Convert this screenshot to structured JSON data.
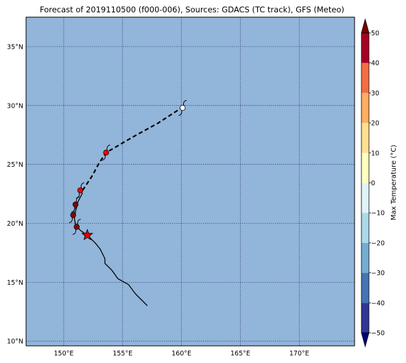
{
  "title": "Forecast of 2019110500 (f000-006), Sources: GDACS (TC track), GFS (Meteo)",
  "map": {
    "ocean_color": "#92b5da",
    "grid_color": "#2b3b70",
    "lon_range": [
      146.8,
      174.7
    ],
    "lat_range": [
      9.6,
      37.5
    ],
    "lon_ticks": [
      {
        "value": 150,
        "label": "150°E"
      },
      {
        "value": 155,
        "label": "155°E"
      },
      {
        "value": 160,
        "label": "160°E"
      },
      {
        "value": 165,
        "label": "165°E"
      },
      {
        "value": 170,
        "label": "170°E"
      }
    ],
    "lat_ticks": [
      {
        "value": 10,
        "label": "10°N"
      },
      {
        "value": 15,
        "label": "15°N"
      },
      {
        "value": 20,
        "label": "20°N"
      },
      {
        "value": 25,
        "label": "25°N"
      },
      {
        "value": 30,
        "label": "30°N"
      },
      {
        "value": 35,
        "label": "35°N"
      }
    ],
    "past_track": [
      [
        157.1,
        13.0
      ],
      [
        156.6,
        13.5
      ],
      [
        156.1,
        14.0
      ],
      [
        155.5,
        14.8
      ],
      [
        154.6,
        15.3
      ],
      [
        154.1,
        16.0
      ],
      [
        153.5,
        16.6
      ],
      [
        153.5,
        17.0
      ],
      [
        153.1,
        17.8
      ],
      [
        152.7,
        18.3
      ],
      [
        152.0,
        19.0
      ],
      [
        151.4,
        19.4
      ],
      [
        151.0,
        19.9
      ],
      [
        150.9,
        20.4
      ],
      [
        151.0,
        21.0
      ],
      [
        151.2,
        21.8
      ],
      [
        151.6,
        22.6
      ]
    ],
    "forecast_track": [
      [
        151.6,
        22.8
      ],
      [
        152.4,
        24.0
      ],
      [
        153.0,
        25.1
      ],
      [
        153.6,
        26.0
      ],
      [
        156.0,
        27.4
      ],
      [
        158.0,
        28.5
      ],
      [
        160.0,
        29.8
      ]
    ],
    "current_position": {
      "lon": 152.0,
      "lat": 19.0,
      "color": "#e00000"
    },
    "storm_symbols": [
      {
        "lon": 151.1,
        "lat": 19.7,
        "color": "#8b0000"
      },
      {
        "lon": 150.8,
        "lat": 20.7,
        "color": "#8b0000"
      },
      {
        "lon": 151.0,
        "lat": 21.6,
        "color": "#8b0000"
      },
      {
        "lon": 151.4,
        "lat": 22.8,
        "color": "#ff0000"
      },
      {
        "lon": 153.6,
        "lat": 26.0,
        "color": "#ff0000"
      },
      {
        "lon": 160.1,
        "lat": 29.8,
        "color": "#ffffff"
      }
    ]
  },
  "colorbar": {
    "label": "Max Temperature (°C)",
    "range": [
      -50,
      50
    ],
    "levels": [
      {
        "from": -50,
        "to": -40,
        "color": "#313695"
      },
      {
        "from": -40,
        "to": -30,
        "color": "#4575b4"
      },
      {
        "from": -30,
        "to": -20,
        "color": "#74add1"
      },
      {
        "from": -20,
        "to": -10,
        "color": "#abd9e9"
      },
      {
        "from": -10,
        "to": 0,
        "color": "#e0f3f8"
      },
      {
        "from": 0,
        "to": 10,
        "color": "#ffffbf"
      },
      {
        "from": 10,
        "to": 20,
        "color": "#fee090"
      },
      {
        "from": 20,
        "to": 30,
        "color": "#fdae61"
      },
      {
        "from": 30,
        "to": 40,
        "color": "#f46d43"
      },
      {
        "from": 40,
        "to": 50,
        "color": "#a50026"
      }
    ],
    "extend_low_color": "#00007a",
    "extend_high_color": "#7a0000",
    "ticks": [
      {
        "value": 50,
        "label": "50"
      },
      {
        "value": 40,
        "label": "40"
      },
      {
        "value": 30,
        "label": "30"
      },
      {
        "value": 20,
        "label": "20"
      },
      {
        "value": 10,
        "label": "10"
      },
      {
        "value": 0,
        "label": "0"
      },
      {
        "value": -10,
        "label": "−10"
      },
      {
        "value": -20,
        "label": "−20"
      },
      {
        "value": -30,
        "label": "−30"
      },
      {
        "value": -40,
        "label": "−40"
      },
      {
        "value": -50,
        "label": "−50"
      }
    ]
  }
}
